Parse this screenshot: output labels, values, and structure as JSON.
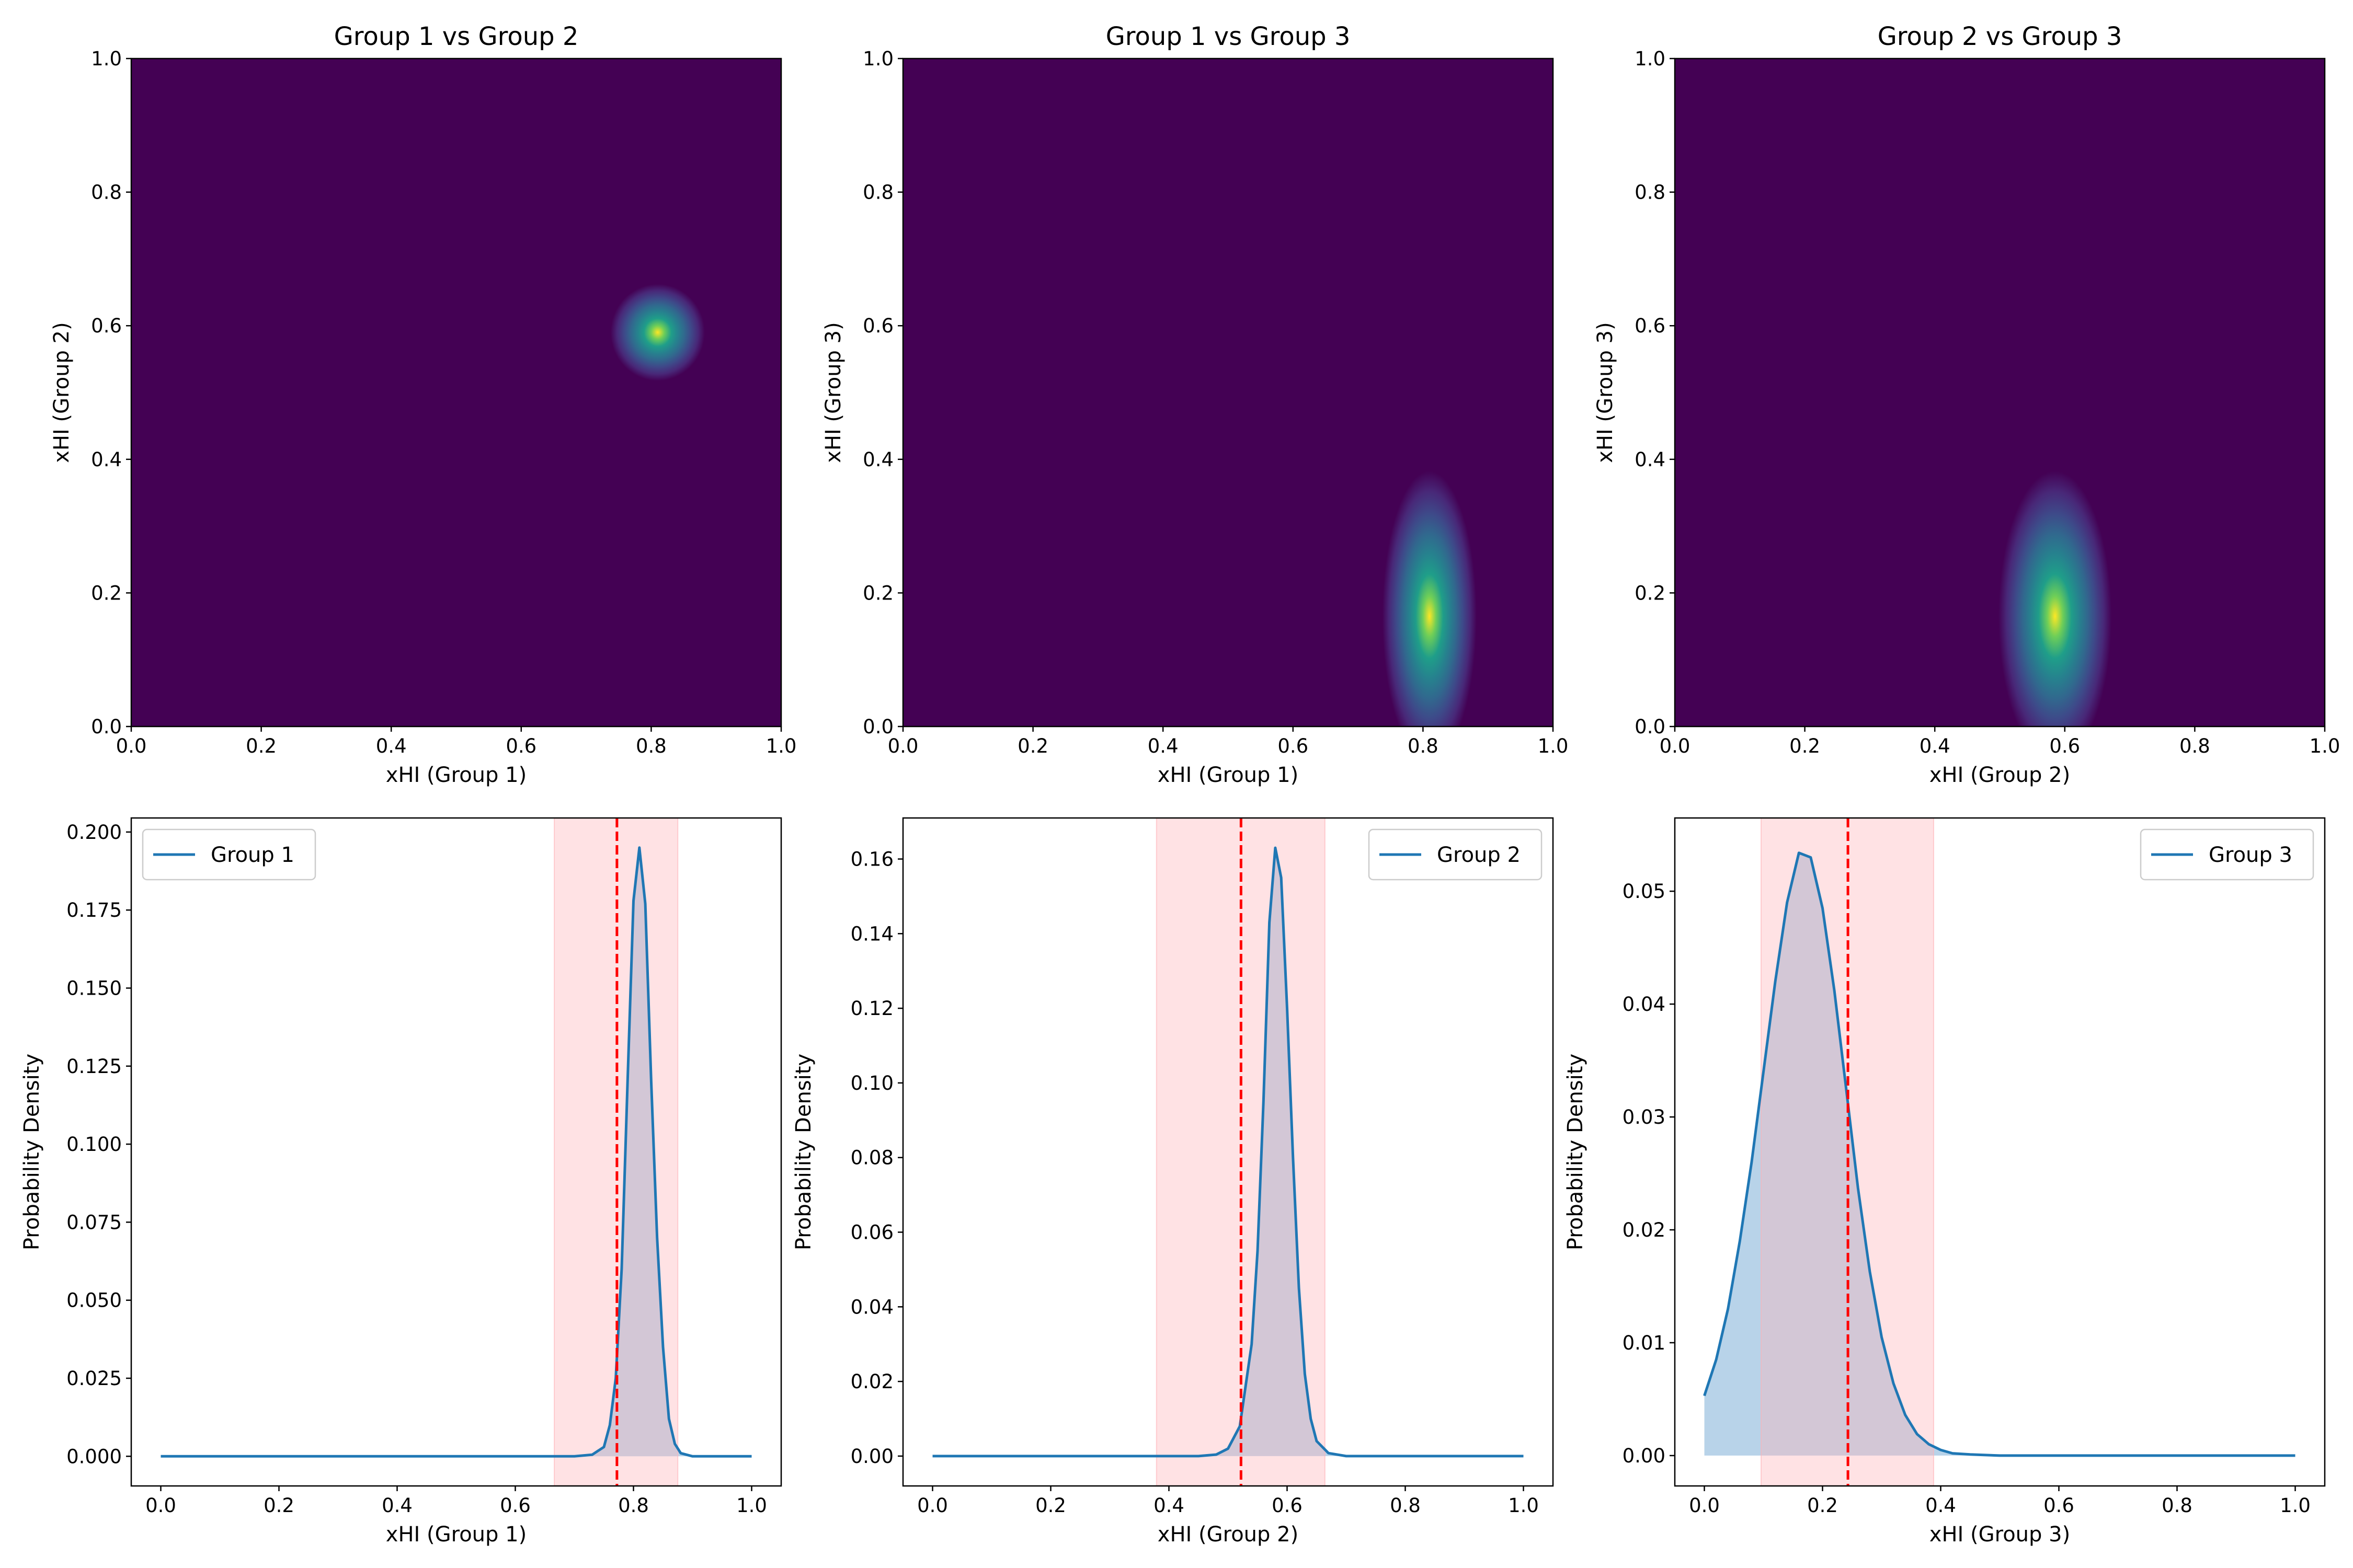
{
  "chart_data": [
    {
      "type": "heatmap",
      "title": "Group 1 vs Group 2",
      "xlabel": "xHI (Group 1)",
      "ylabel": "xHI (Group 2)",
      "xlim": [
        0,
        1
      ],
      "ylim": [
        0,
        1
      ],
      "xticks": [
        "0.0",
        "0.2",
        "0.4",
        "0.6",
        "0.8",
        "1.0"
      ],
      "yticks": [
        "0.0",
        "0.2",
        "0.4",
        "0.6",
        "0.8",
        "1.0"
      ],
      "peak": {
        "x": 0.81,
        "y": 0.59
      },
      "spread": {
        "x": 0.025,
        "y": 0.025
      },
      "colormap": "viridis"
    },
    {
      "type": "heatmap",
      "title": "Group 1 vs Group 3",
      "xlabel": "xHI (Group 1)",
      "ylabel": "xHI (Group 3)",
      "xlim": [
        0,
        1
      ],
      "ylim": [
        0,
        1
      ],
      "xticks": [
        "0.0",
        "0.2",
        "0.4",
        "0.6",
        "0.8",
        "1.0"
      ],
      "yticks": [
        "0.0",
        "0.2",
        "0.4",
        "0.6",
        "0.8",
        "1.0"
      ],
      "peak": {
        "x": 0.81,
        "y": 0.165
      },
      "spread": {
        "x": 0.025,
        "y": 0.075
      },
      "colormap": "viridis"
    },
    {
      "type": "heatmap",
      "title": "Group 2 vs Group 3",
      "xlabel": "xHI (Group 2)",
      "ylabel": "xHI (Group 3)",
      "xlim": [
        0,
        1
      ],
      "ylim": [
        0,
        1
      ],
      "xticks": [
        "0.0",
        "0.2",
        "0.4",
        "0.6",
        "0.8",
        "1.0"
      ],
      "yticks": [
        "0.0",
        "0.2",
        "0.4",
        "0.6",
        "0.8",
        "1.0"
      ],
      "peak": {
        "x": 0.585,
        "y": 0.165
      },
      "spread": {
        "x": 0.03,
        "y": 0.075
      },
      "colormap": "viridis"
    },
    {
      "type": "area",
      "xlabel": "xHI (Group 1)",
      "ylabel": "Probability Density",
      "xlim": [
        -0.05,
        1.05
      ],
      "ylim": [
        -0.0095,
        0.2045
      ],
      "xticks": [
        0,
        0.2,
        0.4,
        0.6,
        0.8,
        1.0
      ],
      "xtick_labels": [
        "0.0",
        "0.2",
        "0.4",
        "0.6",
        "0.8",
        "1.0"
      ],
      "yticks": [
        0,
        0.025,
        0.05,
        0.075,
        0.1,
        0.125,
        0.15,
        0.175,
        0.2
      ],
      "ytick_labels": [
        "0.000",
        "0.025",
        "0.050",
        "0.075",
        "0.100",
        "0.125",
        "0.150",
        "0.175",
        "0.200"
      ],
      "legend": "Group 1",
      "legend_position": "upper left",
      "credible_interval": [
        0.666,
        0.875
      ],
      "reference_line": 0.772,
      "series": [
        {
          "name": "Group 1",
          "x": [
            0,
            0.7,
            0.73,
            0.75,
            0.76,
            0.77,
            0.78,
            0.79,
            0.8,
            0.81,
            0.82,
            0.83,
            0.84,
            0.85,
            0.86,
            0.87,
            0.88,
            0.9,
            1.0
          ],
          "y": [
            0,
            0,
            0.0005,
            0.003,
            0.01,
            0.025,
            0.06,
            0.12,
            0.178,
            0.195,
            0.177,
            0.12,
            0.07,
            0.035,
            0.012,
            0.004,
            0.001,
            0,
            0
          ]
        }
      ]
    },
    {
      "type": "area",
      "xlabel": "xHI (Group 2)",
      "ylabel": "Probability Density",
      "xlim": [
        -0.05,
        1.05
      ],
      "ylim": [
        -0.008,
        0.171
      ],
      "xticks": [
        0,
        0.2,
        0.4,
        0.6,
        0.8,
        1.0
      ],
      "xtick_labels": [
        "0.0",
        "0.2",
        "0.4",
        "0.6",
        "0.8",
        "1.0"
      ],
      "yticks": [
        0,
        0.02,
        0.04,
        0.06,
        0.08,
        0.1,
        0.12,
        0.14,
        0.16
      ],
      "ytick_labels": [
        "0.00",
        "0.02",
        "0.04",
        "0.06",
        "0.08",
        "0.10",
        "0.12",
        "0.14",
        "0.16"
      ],
      "legend": "Group 2",
      "legend_position": "upper right",
      "credible_interval": [
        0.379,
        0.664
      ],
      "reference_line": 0.522,
      "series": [
        {
          "name": "Group 2",
          "x": [
            0,
            0.45,
            0.48,
            0.5,
            0.52,
            0.54,
            0.55,
            0.56,
            0.57,
            0.58,
            0.59,
            0.6,
            0.61,
            0.62,
            0.63,
            0.64,
            0.65,
            0.67,
            0.7,
            1.0
          ],
          "y": [
            0,
            0,
            0.0004,
            0.002,
            0.008,
            0.03,
            0.055,
            0.095,
            0.143,
            0.163,
            0.155,
            0.12,
            0.08,
            0.045,
            0.022,
            0.01,
            0.004,
            0.0008,
            0,
            0
          ]
        }
      ]
    },
    {
      "type": "area",
      "xlabel": "xHI (Group 3)",
      "ylabel": "Probability Density",
      "xlim": [
        -0.05,
        1.05
      ],
      "ylim": [
        -0.00269,
        0.05649
      ],
      "xticks": [
        0,
        0.2,
        0.4,
        0.6,
        0.8,
        1.0
      ],
      "xtick_labels": [
        "0.0",
        "0.2",
        "0.4",
        "0.6",
        "0.8",
        "1.0"
      ],
      "yticks": [
        0,
        0.01,
        0.02,
        0.03,
        0.04,
        0.05
      ],
      "ytick_labels": [
        "0.00",
        "0.01",
        "0.02",
        "0.03",
        "0.04",
        "0.05"
      ],
      "legend": "Group 3",
      "legend_position": "upper right",
      "credible_interval": [
        0.096,
        0.388
      ],
      "reference_line": 0.243,
      "series": [
        {
          "name": "Group 3",
          "x": [
            0,
            0.02,
            0.04,
            0.06,
            0.08,
            0.1,
            0.12,
            0.14,
            0.16,
            0.18,
            0.2,
            0.22,
            0.24,
            0.26,
            0.28,
            0.3,
            0.32,
            0.34,
            0.36,
            0.38,
            0.4,
            0.42,
            0.45,
            0.5,
            0.6,
            1.0
          ],
          "y": [
            0.0053,
            0.0085,
            0.013,
            0.019,
            0.026,
            0.034,
            0.042,
            0.049,
            0.0534,
            0.053,
            0.0485,
            0.0412,
            0.0325,
            0.0237,
            0.0163,
            0.0105,
            0.0064,
            0.0036,
            0.0019,
            0.001,
            0.0005,
            0.0002,
            0.0001,
            0,
            0,
            0
          ]
        }
      ]
    }
  ],
  "colors": {
    "background": "#440154",
    "line": "#1f77b4",
    "fill": "#a6c8e4",
    "interval": "#ffb3b8",
    "reference": "#ff0000"
  }
}
